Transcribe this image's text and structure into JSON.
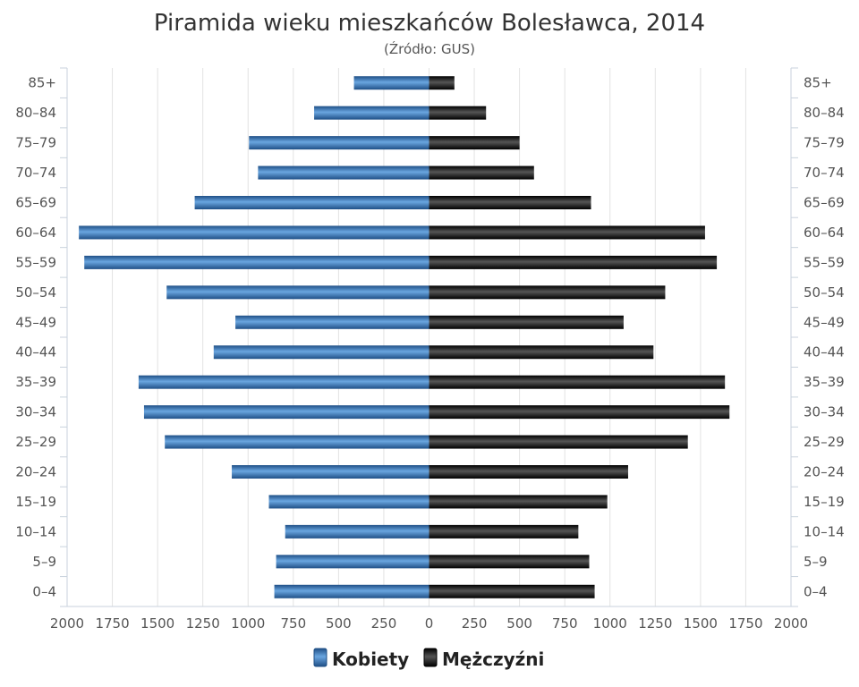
{
  "chart_data": {
    "type": "bar",
    "orientation": "horizontal-pyramid",
    "title": "Piramida wieku mieszkańców Bolesławca, 2014",
    "subtitle": "(Źródło: GUS)",
    "categories": [
      "0–4",
      "5–9",
      "10–14",
      "15–19",
      "20–24",
      "25–29",
      "30–34",
      "35–39",
      "40–44",
      "45–49",
      "50–54",
      "55–59",
      "60–64",
      "65–69",
      "70–74",
      "75–79",
      "80–84",
      "85+"
    ],
    "series": [
      {
        "name": "Kobiety",
        "color": "#3a78b8",
        "side": "left",
        "values": [
          855,
          845,
          795,
          885,
          1090,
          1460,
          1575,
          1605,
          1190,
          1070,
          1450,
          1905,
          1935,
          1295,
          945,
          995,
          635,
          415
        ]
      },
      {
        "name": "Mężczyźni",
        "color": "#1a1a1a",
        "side": "right",
        "values": [
          915,
          885,
          825,
          985,
          1100,
          1430,
          1660,
          1635,
          1240,
          1075,
          1305,
          1590,
          1525,
          895,
          580,
          500,
          315,
          140
        ]
      }
    ],
    "xlim": [
      -2000,
      2000
    ],
    "x_ticks": [
      2000,
      1750,
      1500,
      1250,
      1000,
      750,
      500,
      250,
      0,
      250,
      500,
      750,
      1000,
      1250,
      1500,
      1750,
      2000
    ],
    "x_tick_values": [
      -2000,
      -1750,
      -1500,
      -1250,
      -1000,
      -750,
      -500,
      -250,
      0,
      250,
      500,
      750,
      1000,
      1250,
      1500,
      1750,
      2000
    ],
    "grid": true,
    "legend_position": "bottom-center"
  }
}
